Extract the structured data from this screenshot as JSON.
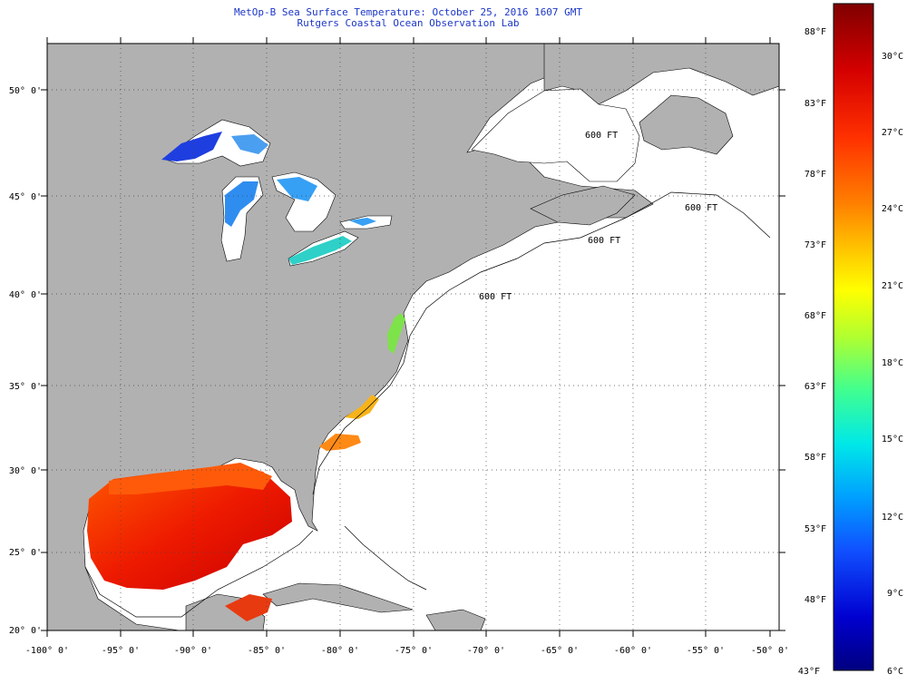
{
  "header": {
    "title": "MetOp-B Sea Surface Temperature:  October 25, 2016 1607 GMT",
    "subtitle": "Rutgers Coastal Ocean Observation Lab"
  },
  "map": {
    "lon_range": [
      -100,
      -50
    ],
    "lat_range": [
      20,
      52.5
    ],
    "lon_ticks": [
      "-100° 0'",
      "-95° 0'",
      "-90° 0'",
      "-85° 0'",
      "-80° 0'",
      "-75° 0'",
      "-70° 0'",
      "-65° 0'",
      "-60° 0'",
      "-55° 0'",
      "-50° 0'"
    ],
    "lat_ticks": [
      "20° 0'",
      "25° 0'",
      "30° 0'",
      "35° 0'",
      "40° 0'",
      "45° 0'",
      "50° 0'"
    ],
    "isobath_labels": [
      "600 FT",
      "600 FT",
      "600 FT",
      "600 FT"
    ],
    "colors": {
      "land": "#b1b1b1",
      "ocean": "#ffffff",
      "grid": "#555555",
      "title_text": "#1b36c6"
    }
  },
  "colorbar": {
    "celsius_labels": [
      "30°C",
      "27°C",
      "24°C",
      "21°C",
      "18°C",
      "15°C",
      "12°C",
      "9°C",
      "6°C"
    ],
    "fahrenheit_labels": [
      "88°F",
      "83°F",
      "78°F",
      "73°F",
      "68°F",
      "63°F",
      "58°F",
      "53°F",
      "48°F",
      "43°F"
    ],
    "min_c": 6,
    "max_c": 31,
    "gradient": [
      "#800000",
      "#d40000",
      "#ff3000",
      "#ff8000",
      "#ffd000",
      "#ffff00",
      "#b0ff30",
      "#40ff90",
      "#00e8e8",
      "#00a0ff",
      "#1050ff",
      "#0000d0",
      "#000080"
    ]
  }
}
